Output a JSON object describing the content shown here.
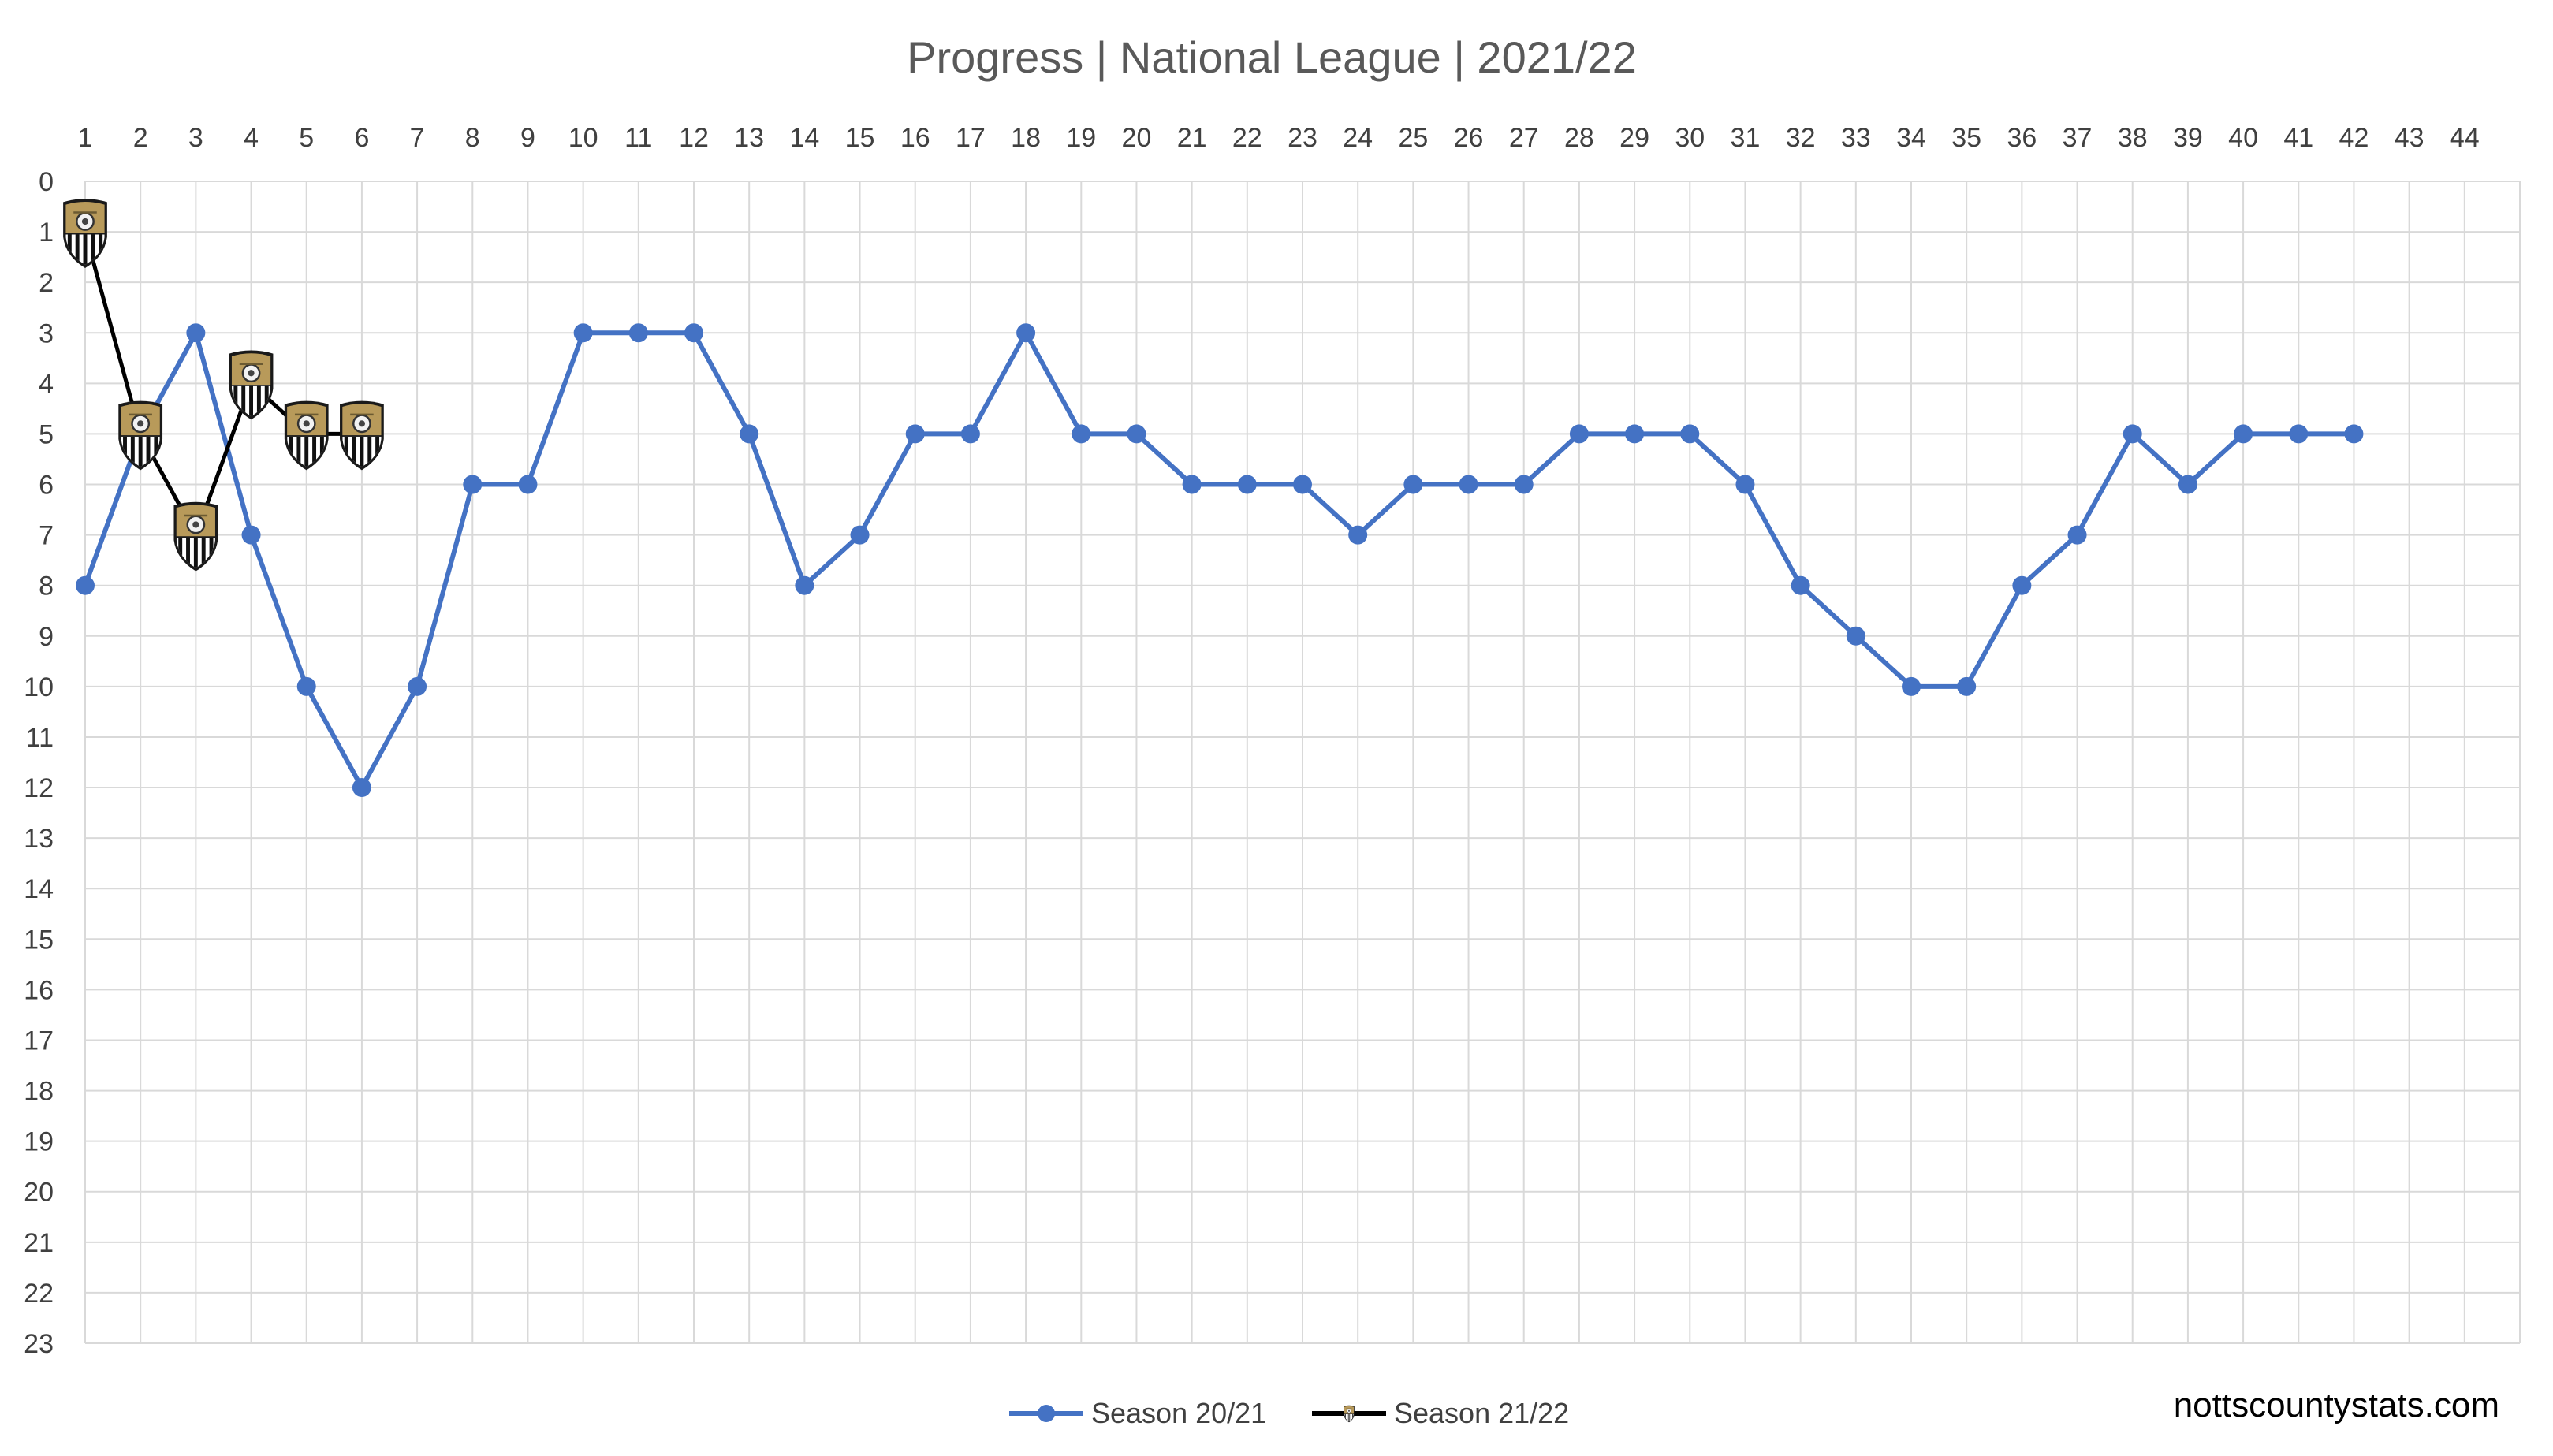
{
  "credit": "nottscountystats.com",
  "chart_data": {
    "type": "line",
    "title": "Progress | National League | 2021/22",
    "xlabel": "",
    "ylabel": "",
    "x_ticks": [
      1,
      2,
      3,
      4,
      5,
      6,
      7,
      8,
      9,
      10,
      11,
      12,
      13,
      14,
      15,
      16,
      17,
      18,
      19,
      20,
      21,
      22,
      23,
      24,
      25,
      26,
      27,
      28,
      29,
      30,
      31,
      32,
      33,
      34,
      35,
      36,
      37,
      38,
      39,
      40,
      41,
      42,
      43,
      44
    ],
    "y_ticks": [
      0,
      1,
      2,
      3,
      4,
      5,
      6,
      7,
      8,
      9,
      10,
      11,
      12,
      13,
      14,
      15,
      16,
      17,
      18,
      19,
      20,
      21,
      22,
      23
    ],
    "xlim": [
      1,
      44
    ],
    "ylim": [
      0,
      23
    ],
    "y_reversed": true,
    "x_axis_position": "top",
    "grid": true,
    "legend_position": "bottom",
    "series": [
      {
        "name": "Season 20/21",
        "color": "#4472c4",
        "marker": "circle",
        "x": [
          1,
          2,
          3,
          4,
          5,
          6,
          7,
          8,
          9,
          10,
          11,
          12,
          13,
          14,
          15,
          16,
          17,
          18,
          19,
          20,
          21,
          22,
          23,
          24,
          25,
          26,
          27,
          28,
          29,
          30,
          31,
          32,
          33,
          34,
          35,
          36,
          37,
          38,
          39,
          40,
          41,
          42
        ],
        "values": [
          8,
          5,
          3,
          7,
          10,
          12,
          10,
          6,
          6,
          3,
          3,
          3,
          5,
          8,
          7,
          5,
          5,
          3,
          5,
          5,
          6,
          6,
          6,
          7,
          6,
          6,
          6,
          5,
          5,
          5,
          6,
          8,
          9,
          10,
          10,
          8,
          7,
          5,
          6,
          5,
          5,
          5
        ]
      },
      {
        "name": "Season 21/22",
        "color": "#000000",
        "marker": "club-crest-icon",
        "x": [
          1,
          2,
          3,
          4,
          5,
          6
        ],
        "values": [
          1,
          5,
          7,
          4,
          5,
          5
        ]
      }
    ]
  }
}
